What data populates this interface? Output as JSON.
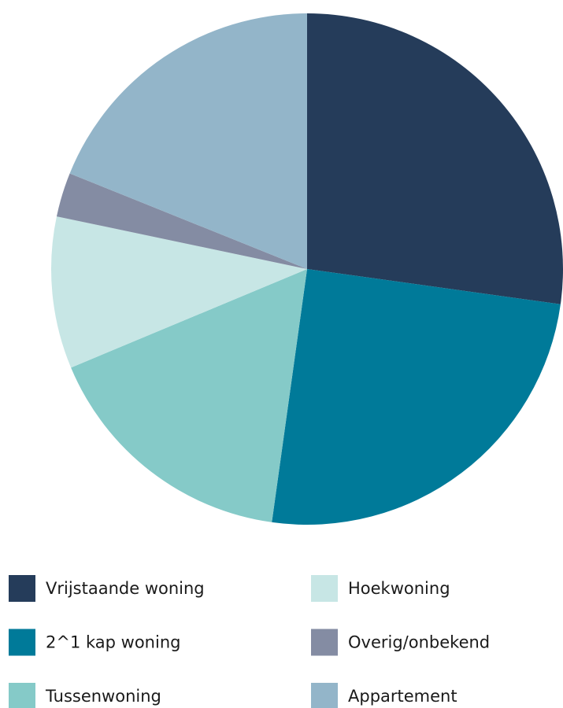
{
  "chart_data": {
    "type": "pie",
    "categories": [
      "Vrijstaande woning",
      "2^1 kap woning",
      "Tussenwoning",
      "Hoekwoning",
      "Overig/onbekend",
      "Appartement"
    ],
    "values": [
      27.2,
      25,
      16.5,
      9.6,
      2.8,
      18.9
    ],
    "colors": [
      "#253c5a",
      "#007a99",
      "#85cac8",
      "#c7e6e5",
      "#848ca3",
      "#93b5c9"
    ]
  }
}
